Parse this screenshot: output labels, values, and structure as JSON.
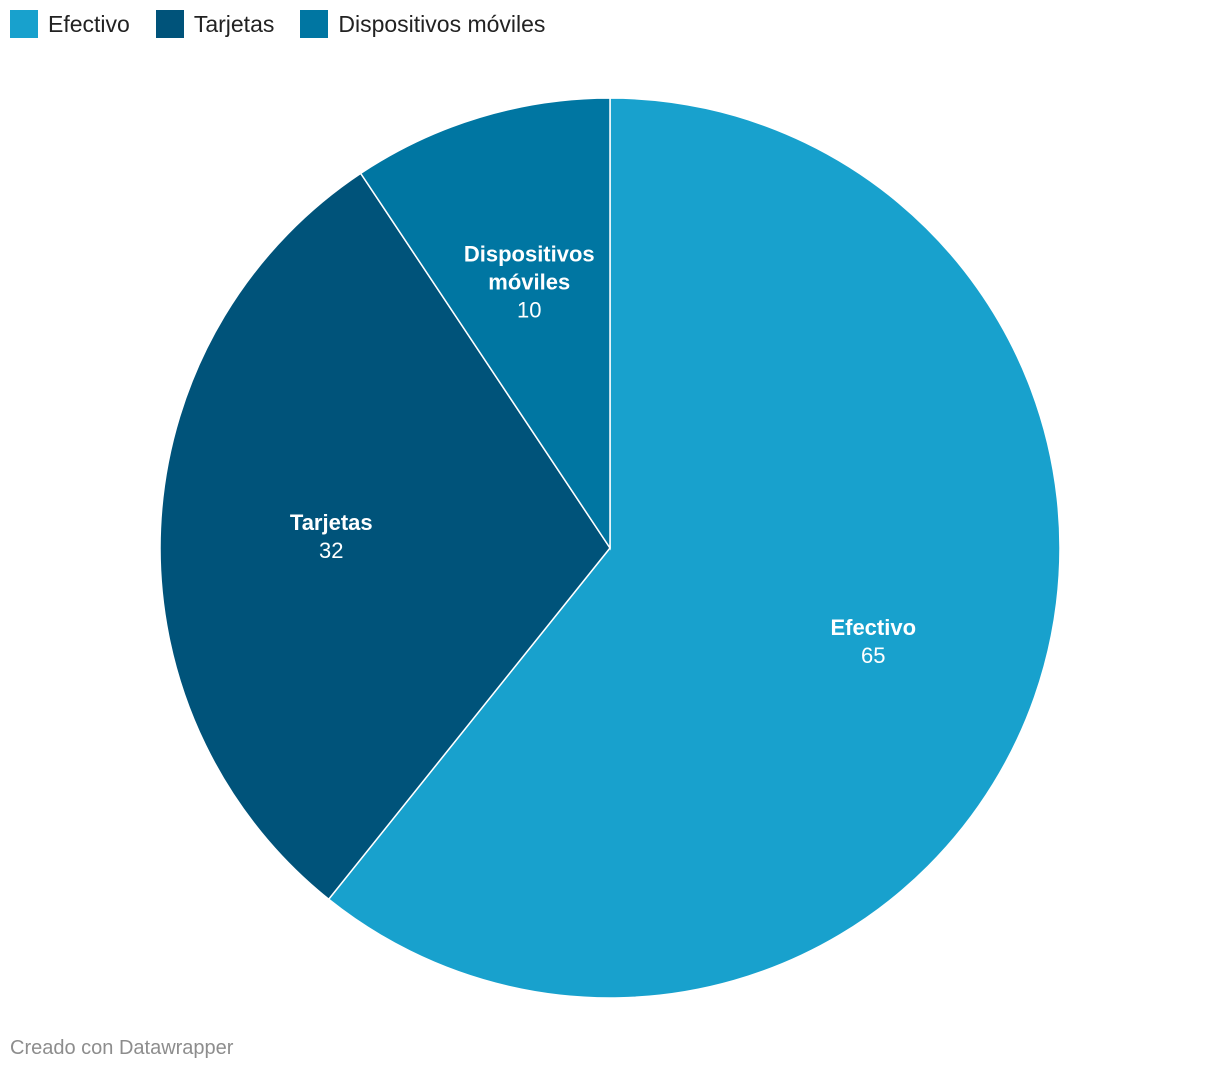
{
  "chart_data": {
    "type": "pie",
    "title": "",
    "slices": [
      {
        "label": "Efectivo",
        "value": 65,
        "color": "#18a1cd"
      },
      {
        "label": "Tarjetas",
        "value": 32,
        "color": "#00537a"
      },
      {
        "label": "Dispositivos móviles",
        "label_lines": [
          "Dispositivos",
          "móviles"
        ],
        "value": 10,
        "color": "#0076a2"
      }
    ],
    "legend_position": "top-left",
    "slice_border_color": "#ffffff"
  },
  "legend": [
    {
      "label": "Efectivo",
      "color": "#18a1cd"
    },
    {
      "label": "Tarjetas",
      "color": "#00537a"
    },
    {
      "label": "Dispositivos móviles",
      "color": "#0076a2"
    }
  ],
  "footer": {
    "credit": "Creado con Datawrapper"
  }
}
